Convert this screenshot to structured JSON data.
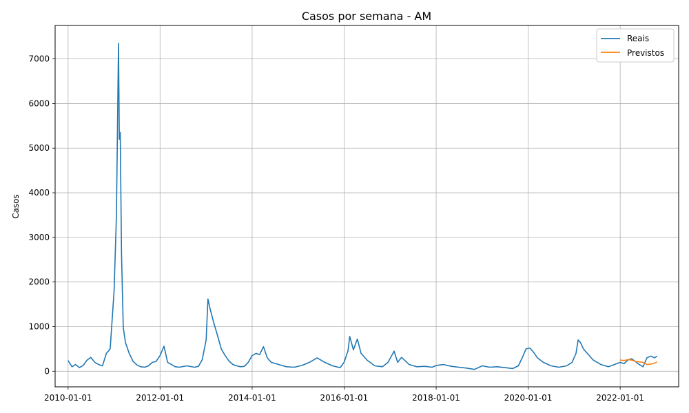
{
  "chart_data": {
    "type": "line",
    "title": "Casos por semana - AM",
    "xlabel": "",
    "ylabel": "Casos",
    "grid": true,
    "legend_position": "top-right",
    "xlim": [
      "2009-09-20",
      "2023-04-10"
    ],
    "ylim": [
      -350,
      7750
    ],
    "x_ticks": [
      "2010-01-01",
      "2012-01-01",
      "2014-01-01",
      "2016-01-01",
      "2018-01-01",
      "2020-01-01",
      "2022-01-01"
    ],
    "y_ticks": [
      0,
      1000,
      2000,
      3000,
      4000,
      5000,
      6000,
      7000
    ],
    "series": [
      {
        "name": "Reais",
        "color": "#1f77b4",
        "points": [
          [
            "2010-01-01",
            240
          ],
          [
            "2010-02-01",
            100
          ],
          [
            "2010-03-01",
            150
          ],
          [
            "2010-04-01",
            80
          ],
          [
            "2010-05-01",
            130
          ],
          [
            "2010-06-01",
            250
          ],
          [
            "2010-07-01",
            310
          ],
          [
            "2010-08-01",
            200
          ],
          [
            "2010-09-01",
            150
          ],
          [
            "2010-10-01",
            120
          ],
          [
            "2010-11-01",
            400
          ],
          [
            "2010-12-01",
            500
          ],
          [
            "2011-01-01",
            1800
          ],
          [
            "2011-01-20",
            3500
          ],
          [
            "2011-02-05",
            7350
          ],
          [
            "2011-02-12",
            5200
          ],
          [
            "2011-02-19",
            5350
          ],
          [
            "2011-03-01",
            2600
          ],
          [
            "2011-03-15",
            980
          ],
          [
            "2011-04-01",
            650
          ],
          [
            "2011-05-01",
            400
          ],
          [
            "2011-06-01",
            220
          ],
          [
            "2011-07-01",
            140
          ],
          [
            "2011-08-01",
            100
          ],
          [
            "2011-09-01",
            90
          ],
          [
            "2011-10-01",
            120
          ],
          [
            "2011-11-01",
            200
          ],
          [
            "2011-12-01",
            220
          ],
          [
            "2012-01-01",
            350
          ],
          [
            "2012-02-01",
            560
          ],
          [
            "2012-03-01",
            200
          ],
          [
            "2012-04-01",
            150
          ],
          [
            "2012-05-01",
            100
          ],
          [
            "2012-06-01",
            90
          ],
          [
            "2012-08-01",
            120
          ],
          [
            "2012-10-01",
            90
          ],
          [
            "2012-11-01",
            110
          ],
          [
            "2012-12-01",
            260
          ],
          [
            "2013-01-01",
            700
          ],
          [
            "2013-01-15",
            1620
          ],
          [
            "2013-02-01",
            1400
          ],
          [
            "2013-03-01",
            1100
          ],
          [
            "2013-04-01",
            800
          ],
          [
            "2013-05-01",
            500
          ],
          [
            "2013-06-01",
            350
          ],
          [
            "2013-07-01",
            230
          ],
          [
            "2013-08-01",
            150
          ],
          [
            "2013-09-01",
            120
          ],
          [
            "2013-10-01",
            100
          ],
          [
            "2013-11-01",
            110
          ],
          [
            "2013-12-01",
            200
          ],
          [
            "2014-01-01",
            350
          ],
          [
            "2014-02-01",
            400
          ],
          [
            "2014-03-01",
            370
          ],
          [
            "2014-04-01",
            550
          ],
          [
            "2014-05-01",
            300
          ],
          [
            "2014-06-01",
            200
          ],
          [
            "2014-08-01",
            150
          ],
          [
            "2014-10-01",
            100
          ],
          [
            "2014-12-01",
            90
          ],
          [
            "2015-02-01",
            130
          ],
          [
            "2015-04-01",
            200
          ],
          [
            "2015-06-01",
            300
          ],
          [
            "2015-08-01",
            200
          ],
          [
            "2015-10-01",
            120
          ],
          [
            "2015-12-01",
            80
          ],
          [
            "2016-01-01",
            200
          ],
          [
            "2016-02-01",
            460
          ],
          [
            "2016-02-15",
            780
          ],
          [
            "2016-03-15",
            480
          ],
          [
            "2016-04-15",
            720
          ],
          [
            "2016-05-15",
            400
          ],
          [
            "2016-07-01",
            250
          ],
          [
            "2016-09-01",
            120
          ],
          [
            "2016-11-01",
            100
          ],
          [
            "2016-12-15",
            200
          ],
          [
            "2017-02-01",
            450
          ],
          [
            "2017-03-01",
            200
          ],
          [
            "2017-04-01",
            310
          ],
          [
            "2017-06-01",
            150
          ],
          [
            "2017-08-01",
            100
          ],
          [
            "2017-10-01",
            110
          ],
          [
            "2017-12-01",
            90
          ],
          [
            "2018-01-01",
            130
          ],
          [
            "2018-03-01",
            150
          ],
          [
            "2018-05-01",
            110
          ],
          [
            "2018-07-01",
            90
          ],
          [
            "2018-09-01",
            70
          ],
          [
            "2018-11-01",
            40
          ],
          [
            "2019-01-01",
            120
          ],
          [
            "2019-03-01",
            90
          ],
          [
            "2019-05-01",
            100
          ],
          [
            "2019-07-01",
            80
          ],
          [
            "2019-09-01",
            60
          ],
          [
            "2019-10-15",
            120
          ],
          [
            "2019-11-15",
            300
          ],
          [
            "2019-12-15",
            500
          ],
          [
            "2020-01-15",
            520
          ],
          [
            "2020-02-15",
            420
          ],
          [
            "2020-03-15",
            300
          ],
          [
            "2020-05-01",
            200
          ],
          [
            "2020-07-01",
            120
          ],
          [
            "2020-09-01",
            90
          ],
          [
            "2020-11-01",
            120
          ],
          [
            "2020-12-15",
            200
          ],
          [
            "2021-01-15",
            400
          ],
          [
            "2021-02-01",
            700
          ],
          [
            "2021-02-20",
            640
          ],
          [
            "2021-03-15",
            500
          ],
          [
            "2021-04-15",
            400
          ],
          [
            "2021-06-01",
            250
          ],
          [
            "2021-08-01",
            150
          ],
          [
            "2021-10-01",
            100
          ],
          [
            "2021-11-15",
            150
          ],
          [
            "2022-01-01",
            200
          ],
          [
            "2022-02-01",
            170
          ],
          [
            "2022-03-01",
            250
          ],
          [
            "2022-04-01",
            280
          ],
          [
            "2022-05-01",
            220
          ],
          [
            "2022-06-01",
            150
          ],
          [
            "2022-07-01",
            100
          ],
          [
            "2022-08-01",
            300
          ],
          [
            "2022-09-01",
            340
          ],
          [
            "2022-10-01",
            300
          ],
          [
            "2022-10-20",
            340
          ]
        ]
      },
      {
        "name": "Previstos",
        "color": "#ff7f0e",
        "points": [
          [
            "2022-01-01",
            250
          ],
          [
            "2022-02-01",
            240
          ],
          [
            "2022-03-01",
            260
          ],
          [
            "2022-04-01",
            250
          ],
          [
            "2022-05-01",
            220
          ],
          [
            "2022-06-01",
            210
          ],
          [
            "2022-07-01",
            200
          ],
          [
            "2022-08-01",
            150
          ],
          [
            "2022-09-01",
            160
          ],
          [
            "2022-10-01",
            180
          ],
          [
            "2022-10-20",
            210
          ]
        ]
      }
    ]
  }
}
